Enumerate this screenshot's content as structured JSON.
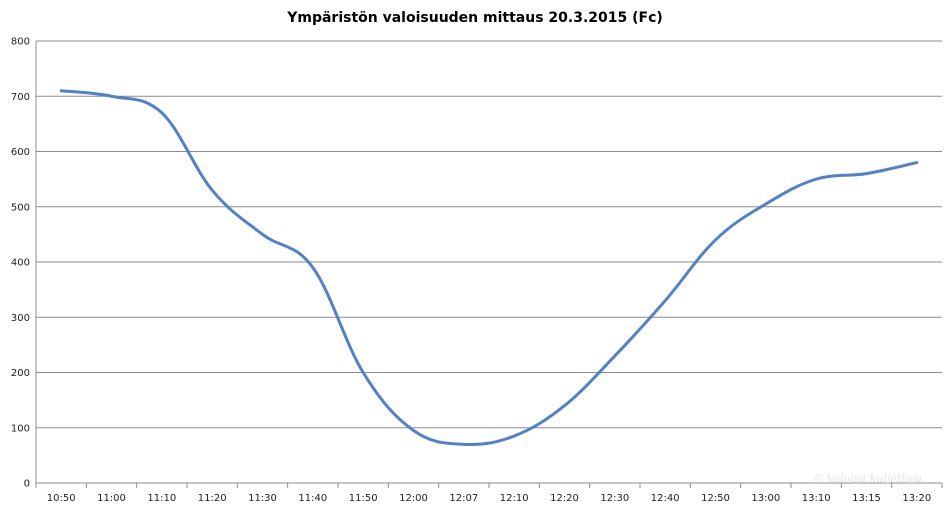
{
  "chart_data": {
    "type": "line",
    "title": "Ympäristön valoisuuden mittaus 20.3.2015 (Fc)",
    "xlabel": "",
    "ylabel": "",
    "categories": [
      "10:50",
      "11:00",
      "11:10",
      "11:20",
      "11:30",
      "11:40",
      "11:50",
      "12:00",
      "12:07",
      "12:10",
      "12:20",
      "12:30",
      "12:40",
      "12:50",
      "13:00",
      "13:10",
      "13:15",
      "13:20"
    ],
    "series": [
      {
        "values": [
          710,
          700,
          670,
          530,
          450,
          390,
          200,
          95,
          70,
          85,
          140,
          230,
          330,
          440,
          505,
          550,
          560,
          580
        ]
      }
    ],
    "ylim": [
      0,
      800
    ],
    "yticks": [
      0,
      100,
      200,
      300,
      400,
      500,
      600,
      700,
      800
    ],
    "grid": true,
    "legend": "none",
    "line_color": "#5381c4"
  },
  "watermark": "© Valoisa kuljettaja"
}
